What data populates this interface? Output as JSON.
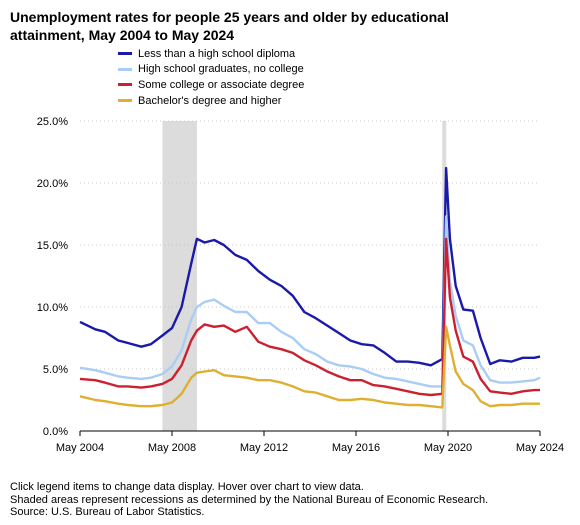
{
  "title": "Unemployment rates for people 25 years and older by educational attainment, May 2004 to May 2024",
  "footer": {
    "line1": "Click legend items to change data display. Hover over chart to view data.",
    "line2": "Shaded areas represent recessions as determined by the National Bureau of Economic Research.",
    "line3": "Source: U.S. Bureau of Labor Statistics."
  },
  "chart_data": {
    "type": "line",
    "title": "Unemployment rates for people 25 years and older by educational attainment, May 2004 to May 2024",
    "xlabel": "",
    "ylabel": "",
    "xlim": [
      "2004-05",
      "2024-05"
    ],
    "ylim": [
      0,
      25
    ],
    "y_ticks": [
      "0.0%",
      "5.0%",
      "10.0%",
      "15.0%",
      "20.0%",
      "25.0%"
    ],
    "x_ticks": [
      "May 2004",
      "May 2008",
      "May 2012",
      "May 2016",
      "May 2020",
      "May 2024"
    ],
    "grid": "horizontal dotted",
    "legend_placement": "top",
    "recessions": [
      {
        "start": "2007-12",
        "end": "2009-06"
      },
      {
        "start": "2020-02",
        "end": "2020-04"
      }
    ],
    "series": [
      {
        "name": "Less than a high school diploma",
        "color": "#1a1aa8",
        "points": [
          [
            "2004-05",
            8.8
          ],
          [
            "2005-01",
            8.2
          ],
          [
            "2005-06",
            8.0
          ],
          [
            "2006-01",
            7.3
          ],
          [
            "2006-06",
            7.1
          ],
          [
            "2007-01",
            6.8
          ],
          [
            "2007-06",
            7.0
          ],
          [
            "2007-12",
            7.7
          ],
          [
            "2008-05",
            8.3
          ],
          [
            "2008-10",
            10.0
          ],
          [
            "2009-03",
            13.5
          ],
          [
            "2009-06",
            15.5
          ],
          [
            "2009-10",
            15.2
          ],
          [
            "2010-03",
            15.4
          ],
          [
            "2010-08",
            15.0
          ],
          [
            "2011-02",
            14.2
          ],
          [
            "2011-08",
            13.8
          ],
          [
            "2012-02",
            12.9
          ],
          [
            "2012-08",
            12.2
          ],
          [
            "2013-02",
            11.7
          ],
          [
            "2013-08",
            10.9
          ],
          [
            "2014-02",
            9.6
          ],
          [
            "2014-08",
            9.1
          ],
          [
            "2015-02",
            8.5
          ],
          [
            "2015-08",
            7.9
          ],
          [
            "2016-02",
            7.3
          ],
          [
            "2016-08",
            7.0
          ],
          [
            "2017-02",
            6.9
          ],
          [
            "2017-08",
            6.3
          ],
          [
            "2018-02",
            5.6
          ],
          [
            "2018-08",
            5.6
          ],
          [
            "2019-02",
            5.5
          ],
          [
            "2019-08",
            5.3
          ],
          [
            "2020-02",
            5.8
          ],
          [
            "2020-04",
            21.2
          ],
          [
            "2020-06",
            15.5
          ],
          [
            "2020-09",
            11.7
          ],
          [
            "2021-01",
            9.8
          ],
          [
            "2021-06",
            9.7
          ],
          [
            "2021-10",
            7.5
          ],
          [
            "2022-03",
            5.4
          ],
          [
            "2022-08",
            5.7
          ],
          [
            "2023-02",
            5.6
          ],
          [
            "2023-08",
            5.9
          ],
          [
            "2024-02",
            5.9
          ],
          [
            "2024-05",
            6.0
          ]
        ]
      },
      {
        "name": "High school graduates, no college",
        "color": "#a9cdf5",
        "points": [
          [
            "2004-05",
            5.1
          ],
          [
            "2005-01",
            4.9
          ],
          [
            "2005-06",
            4.7
          ],
          [
            "2006-01",
            4.4
          ],
          [
            "2006-06",
            4.3
          ],
          [
            "2007-01",
            4.2
          ],
          [
            "2007-06",
            4.3
          ],
          [
            "2007-12",
            4.6
          ],
          [
            "2008-05",
            5.2
          ],
          [
            "2008-10",
            6.5
          ],
          [
            "2009-03",
            9.0
          ],
          [
            "2009-06",
            10.0
          ],
          [
            "2009-10",
            10.4
          ],
          [
            "2010-03",
            10.6
          ],
          [
            "2010-08",
            10.1
          ],
          [
            "2011-02",
            9.6
          ],
          [
            "2011-08",
            9.6
          ],
          [
            "2012-02",
            8.7
          ],
          [
            "2012-08",
            8.7
          ],
          [
            "2013-02",
            8.0
          ],
          [
            "2013-08",
            7.5
          ],
          [
            "2014-02",
            6.6
          ],
          [
            "2014-08",
            6.2
          ],
          [
            "2015-02",
            5.6
          ],
          [
            "2015-08",
            5.3
          ],
          [
            "2016-02",
            5.2
          ],
          [
            "2016-08",
            5.0
          ],
          [
            "2017-02",
            4.6
          ],
          [
            "2017-08",
            4.3
          ],
          [
            "2018-02",
            4.2
          ],
          [
            "2018-08",
            4.0
          ],
          [
            "2019-02",
            3.8
          ],
          [
            "2019-08",
            3.6
          ],
          [
            "2020-02",
            3.6
          ],
          [
            "2020-04",
            17.3
          ],
          [
            "2020-06",
            12.1
          ],
          [
            "2020-09",
            9.3
          ],
          [
            "2021-01",
            7.3
          ],
          [
            "2021-06",
            6.9
          ],
          [
            "2021-10",
            5.3
          ],
          [
            "2022-03",
            4.1
          ],
          [
            "2022-08",
            3.9
          ],
          [
            "2023-02",
            3.9
          ],
          [
            "2023-08",
            4.0
          ],
          [
            "2024-02",
            4.1
          ],
          [
            "2024-05",
            4.3
          ]
        ]
      },
      {
        "name": "Some college or associate degree",
        "color": "#cc2030",
        "points": [
          [
            "2004-05",
            4.2
          ],
          [
            "2005-01",
            4.1
          ],
          [
            "2005-06",
            3.9
          ],
          [
            "2006-01",
            3.6
          ],
          [
            "2006-06",
            3.6
          ],
          [
            "2007-01",
            3.5
          ],
          [
            "2007-06",
            3.6
          ],
          [
            "2007-12",
            3.8
          ],
          [
            "2008-05",
            4.2
          ],
          [
            "2008-10",
            5.3
          ],
          [
            "2009-03",
            7.3
          ],
          [
            "2009-06",
            8.1
          ],
          [
            "2009-10",
            8.6
          ],
          [
            "2010-03",
            8.4
          ],
          [
            "2010-08",
            8.5
          ],
          [
            "2011-02",
            8.0
          ],
          [
            "2011-08",
            8.4
          ],
          [
            "2012-02",
            7.2
          ],
          [
            "2012-08",
            6.8
          ],
          [
            "2013-02",
            6.6
          ],
          [
            "2013-08",
            6.3
          ],
          [
            "2014-02",
            5.7
          ],
          [
            "2014-08",
            5.3
          ],
          [
            "2015-02",
            4.8
          ],
          [
            "2015-08",
            4.4
          ],
          [
            "2016-02",
            4.1
          ],
          [
            "2016-08",
            4.1
          ],
          [
            "2017-02",
            3.7
          ],
          [
            "2017-08",
            3.6
          ],
          [
            "2018-02",
            3.4
          ],
          [
            "2018-08",
            3.2
          ],
          [
            "2019-02",
            3.0
          ],
          [
            "2019-08",
            2.9
          ],
          [
            "2020-02",
            3.0
          ],
          [
            "2020-04",
            15.5
          ],
          [
            "2020-06",
            10.8
          ],
          [
            "2020-09",
            8.1
          ],
          [
            "2021-01",
            6.0
          ],
          [
            "2021-06",
            5.6
          ],
          [
            "2021-10",
            4.2
          ],
          [
            "2022-03",
            3.2
          ],
          [
            "2022-08",
            3.1
          ],
          [
            "2023-02",
            3.0
          ],
          [
            "2023-08",
            3.2
          ],
          [
            "2024-02",
            3.3
          ],
          [
            "2024-05",
            3.3
          ]
        ]
      },
      {
        "name": "Bachelor's degree and higher",
        "color": "#dfaf32",
        "points": [
          [
            "2004-05",
            2.8
          ],
          [
            "2005-01",
            2.5
          ],
          [
            "2005-06",
            2.4
          ],
          [
            "2006-01",
            2.2
          ],
          [
            "2006-06",
            2.1
          ],
          [
            "2007-01",
            2.0
          ],
          [
            "2007-06",
            2.0
          ],
          [
            "2007-12",
            2.1
          ],
          [
            "2008-05",
            2.3
          ],
          [
            "2008-10",
            3.0
          ],
          [
            "2009-03",
            4.3
          ],
          [
            "2009-06",
            4.7
          ],
          [
            "2009-10",
            4.8
          ],
          [
            "2010-03",
            4.9
          ],
          [
            "2010-08",
            4.5
          ],
          [
            "2011-02",
            4.4
          ],
          [
            "2011-08",
            4.3
          ],
          [
            "2012-02",
            4.1
          ],
          [
            "2012-08",
            4.1
          ],
          [
            "2013-02",
            3.9
          ],
          [
            "2013-08",
            3.6
          ],
          [
            "2014-02",
            3.2
          ],
          [
            "2014-08",
            3.1
          ],
          [
            "2015-02",
            2.8
          ],
          [
            "2015-08",
            2.5
          ],
          [
            "2016-02",
            2.5
          ],
          [
            "2016-08",
            2.6
          ],
          [
            "2017-02",
            2.5
          ],
          [
            "2017-08",
            2.3
          ],
          [
            "2018-02",
            2.2
          ],
          [
            "2018-08",
            2.1
          ],
          [
            "2019-02",
            2.1
          ],
          [
            "2019-08",
            2.0
          ],
          [
            "2020-02",
            1.9
          ],
          [
            "2020-04",
            8.4
          ],
          [
            "2020-06",
            6.9
          ],
          [
            "2020-09",
            4.8
          ],
          [
            "2021-01",
            3.8
          ],
          [
            "2021-06",
            3.3
          ],
          [
            "2021-10",
            2.4
          ],
          [
            "2022-03",
            2.0
          ],
          [
            "2022-08",
            2.1
          ],
          [
            "2023-02",
            2.1
          ],
          [
            "2023-08",
            2.2
          ],
          [
            "2024-02",
            2.2
          ],
          [
            "2024-05",
            2.2
          ]
        ]
      }
    ]
  }
}
